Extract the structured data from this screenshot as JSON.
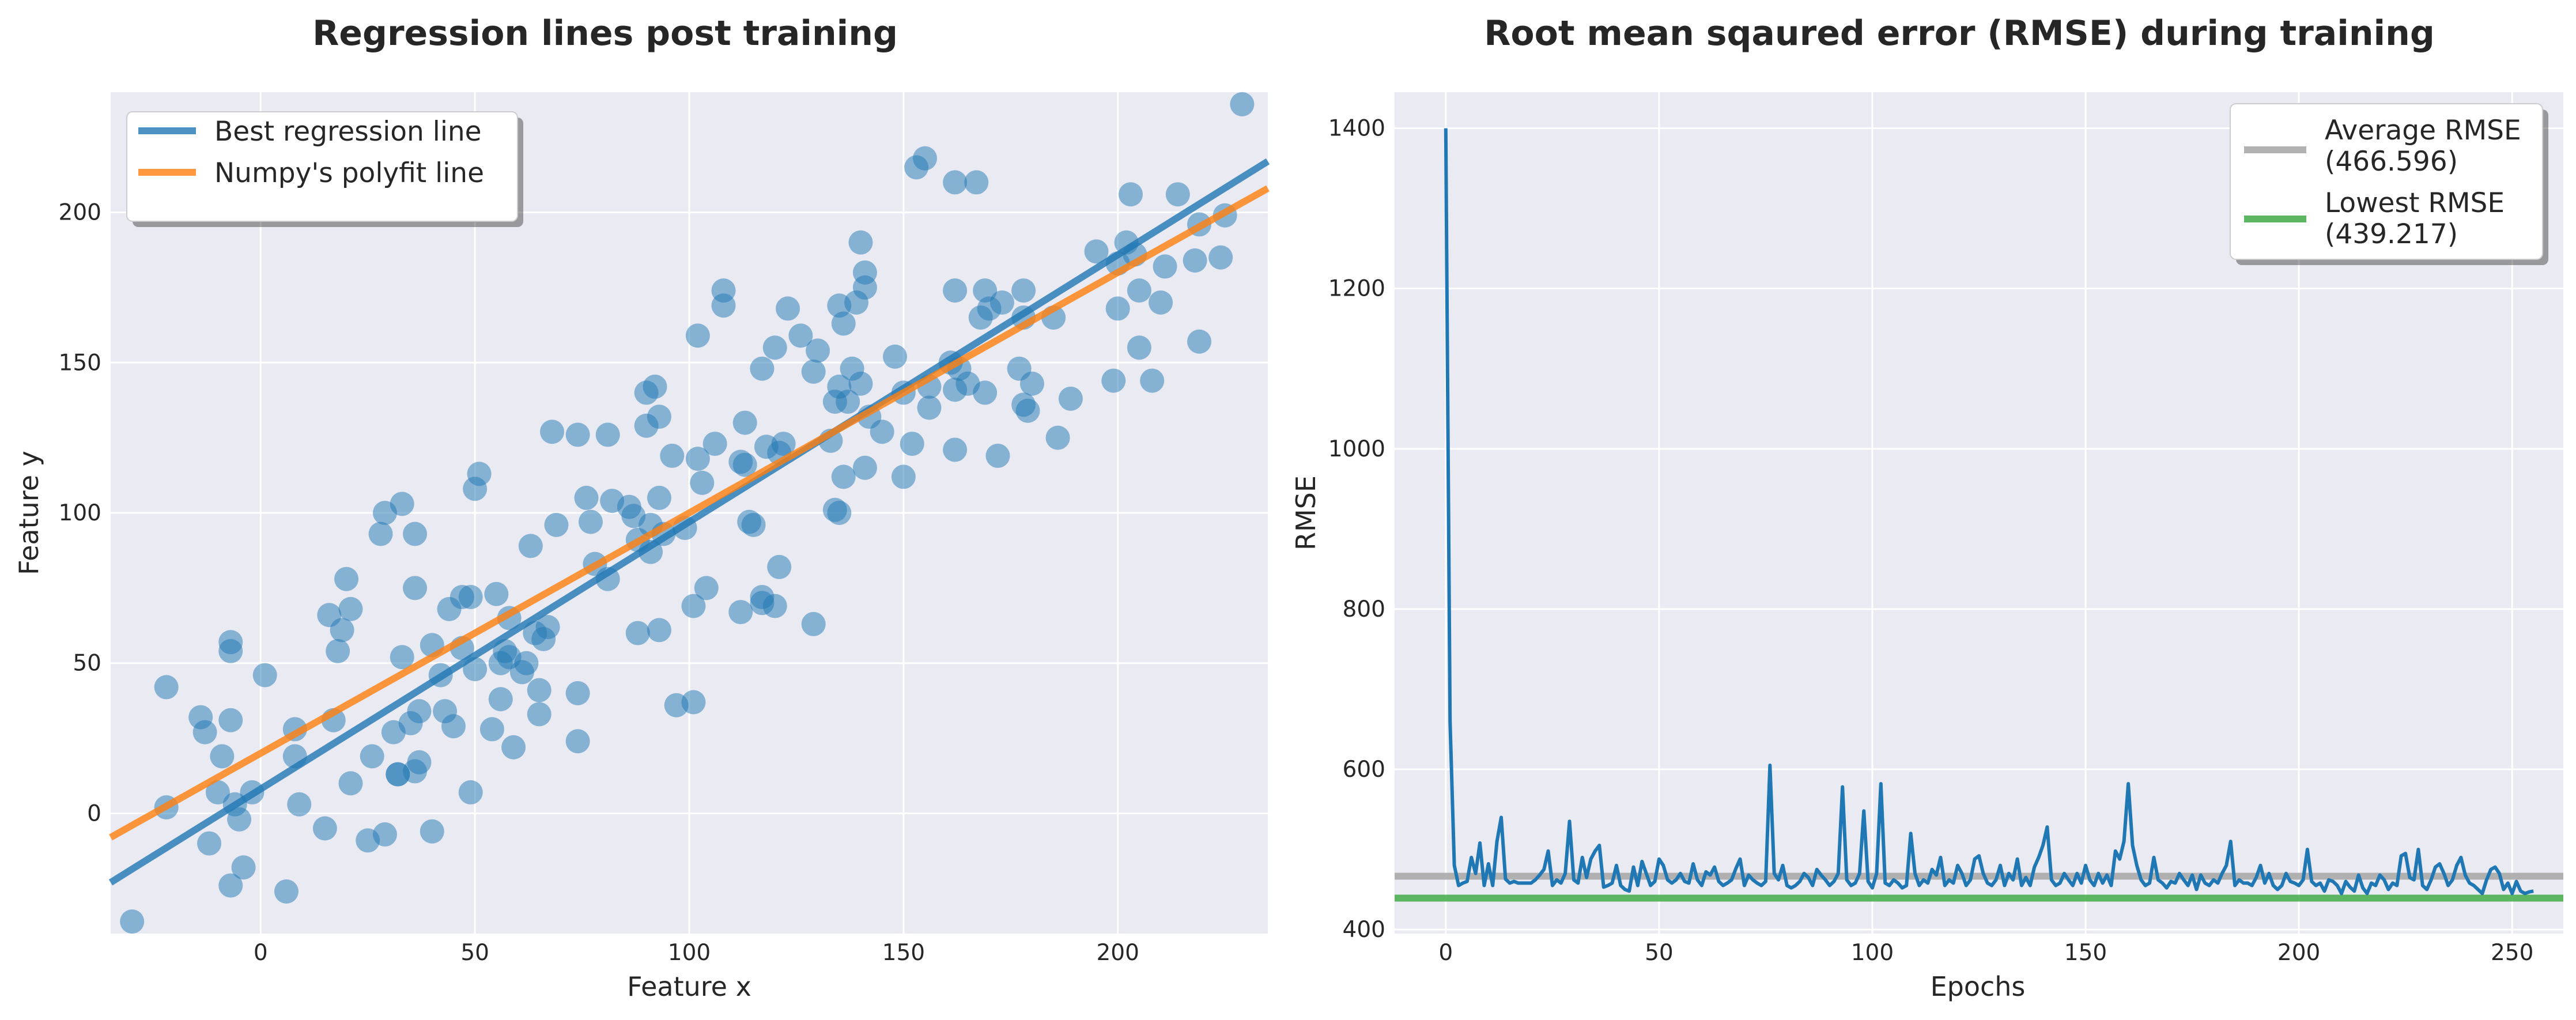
{
  "colors": {
    "plot_bg": "#EAEAF2",
    "grid": "#FFFFFF",
    "scatter": "#1F77B4",
    "best_line": "#1F77B4",
    "polyfit_line": "#FF7F0E",
    "rmse_line": "#1F77B4",
    "average_line": "#AAAAAA",
    "lowest_line": "#4CAF50"
  },
  "chart_data": [
    {
      "type": "scatter",
      "title": "Regression lines post training",
      "xlabel": "Feature x",
      "ylabel": "Feature y",
      "xlim": [
        -35,
        235
      ],
      "ylim": [
        -40,
        240
      ],
      "xticks": [
        0,
        50,
        100,
        150,
        200
      ],
      "yticks": [
        0,
        50,
        100,
        150,
        200
      ],
      "xtick_labels": [
        "0",
        "50",
        "100",
        "150",
        "200"
      ],
      "ytick_labels": [
        "0",
        "50",
        "100",
        "150",
        "200"
      ],
      "grid": true,
      "legend_position": "top-left",
      "series": [
        {
          "name": "Best regression line",
          "kind": "line",
          "x": [
            -35,
            235
          ],
          "y": [
            -23,
            217
          ]
        },
        {
          "name": "Numpy's polyfit line",
          "kind": "line",
          "x": [
            -35,
            235
          ],
          "y": [
            -8,
            208
          ]
        }
      ],
      "points": [
        [
          -30,
          -36
        ],
        [
          -22,
          42
        ],
        [
          -22,
          2
        ],
        [
          -14,
          32
        ],
        [
          -13,
          27
        ],
        [
          -12,
          -10
        ],
        [
          -10,
          7
        ],
        [
          -9,
          19
        ],
        [
          -7,
          57
        ],
        [
          -7,
          54
        ],
        [
          -7,
          31
        ],
        [
          -7,
          -24
        ],
        [
          -6,
          3
        ],
        [
          -5,
          -2
        ],
        [
          -4,
          -18
        ],
        [
          -2,
          7
        ],
        [
          1,
          46
        ],
        [
          6,
          -26
        ],
        [
          8,
          28
        ],
        [
          8,
          19
        ],
        [
          9,
          3
        ],
        [
          15,
          -5
        ],
        [
          16,
          66
        ],
        [
          17,
          31
        ],
        [
          18,
          54
        ],
        [
          19,
          61
        ],
        [
          20,
          78
        ],
        [
          21,
          68
        ],
        [
          21,
          10
        ],
        [
          25,
          -9
        ],
        [
          26,
          19
        ],
        [
          28,
          93
        ],
        [
          29,
          -7
        ],
        [
          29,
          100
        ],
        [
          31,
          27
        ],
        [
          32,
          13
        ],
        [
          32,
          13
        ],
        [
          33,
          103
        ],
        [
          33,
          52
        ],
        [
          35,
          30
        ],
        [
          36,
          93
        ],
        [
          36,
          75
        ],
        [
          37,
          34
        ],
        [
          37,
          17
        ],
        [
          36,
          14
        ],
        [
          40,
          -6
        ],
        [
          40,
          56
        ],
        [
          42,
          46
        ],
        [
          43,
          34
        ],
        [
          44,
          68
        ],
        [
          45,
          29
        ],
        [
          47,
          72
        ],
        [
          47,
          55
        ],
        [
          49,
          72
        ],
        [
          50,
          48
        ],
        [
          49,
          7
        ],
        [
          50,
          108
        ],
        [
          51,
          113
        ],
        [
          54,
          28
        ],
        [
          55,
          73
        ],
        [
          56,
          38
        ],
        [
          56,
          50
        ],
        [
          57,
          54
        ],
        [
          58,
          52
        ],
        [
          58,
          65
        ],
        [
          59,
          22
        ],
        [
          61,
          47
        ],
        [
          62,
          50
        ],
        [
          63,
          89
        ],
        [
          64,
          60
        ],
        [
          65,
          41
        ],
        [
          65,
          33
        ],
        [
          66,
          58
        ],
        [
          67,
          62
        ],
        [
          68,
          127
        ],
        [
          69,
          96
        ],
        [
          74,
          24
        ],
        [
          74,
          40
        ],
        [
          74,
          126
        ],
        [
          76,
          105
        ],
        [
          77,
          97
        ],
        [
          78,
          83
        ],
        [
          81,
          78
        ],
        [
          81,
          126
        ],
        [
          82,
          104
        ],
        [
          86,
          102
        ],
        [
          87,
          99
        ],
        [
          88,
          60
        ],
        [
          88,
          91
        ],
        [
          90,
          140
        ],
        [
          90,
          129
        ],
        [
          91,
          87
        ],
        [
          91,
          96
        ],
        [
          92,
          142
        ],
        [
          93,
          132
        ],
        [
          93,
          61
        ],
        [
          93,
          105
        ],
        [
          94,
          93
        ],
        [
          96,
          119
        ],
        [
          97,
          36
        ],
        [
          99,
          95
        ],
        [
          101,
          69
        ],
        [
          101,
          37
        ],
        [
          102,
          118
        ],
        [
          102,
          159
        ],
        [
          103,
          110
        ],
        [
          104,
          75
        ],
        [
          106,
          123
        ],
        [
          108,
          174
        ],
        [
          108,
          169
        ],
        [
          112,
          117
        ],
        [
          112,
          67
        ],
        [
          113,
          116
        ],
        [
          113,
          130
        ],
        [
          114,
          97
        ],
        [
          115,
          96
        ],
        [
          117,
          148
        ],
        [
          117,
          70
        ],
        [
          117,
          72
        ],
        [
          118,
          122
        ],
        [
          120,
          69
        ],
        [
          120,
          155
        ],
        [
          121,
          82
        ],
        [
          121,
          120
        ],
        [
          122,
          123
        ],
        [
          123,
          168
        ],
        [
          126,
          159
        ],
        [
          129,
          147
        ],
        [
          129,
          63
        ],
        [
          130,
          154
        ],
        [
          133,
          124
        ],
        [
          134,
          137
        ],
        [
          134,
          101
        ],
        [
          135,
          142
        ],
        [
          135,
          100
        ],
        [
          135,
          169
        ],
        [
          136,
          163
        ],
        [
          136,
          112
        ],
        [
          137,
          137
        ],
        [
          138,
          148
        ],
        [
          139,
          170
        ],
        [
          140,
          190
        ],
        [
          140,
          143
        ],
        [
          141,
          180
        ],
        [
          141,
          175
        ],
        [
          141,
          115
        ],
        [
          142,
          132
        ],
        [
          145,
          127
        ],
        [
          148,
          152
        ],
        [
          150,
          140
        ],
        [
          150,
          112
        ],
        [
          152,
          123
        ],
        [
          153,
          215
        ],
        [
          155,
          218
        ],
        [
          156,
          142
        ],
        [
          156,
          135
        ],
        [
          161,
          150
        ],
        [
          162,
          141
        ],
        [
          162,
          210
        ],
        [
          162,
          174
        ],
        [
          162,
          121
        ],
        [
          163,
          148
        ],
        [
          165,
          143
        ],
        [
          167,
          210
        ],
        [
          168,
          165
        ],
        [
          169,
          140
        ],
        [
          169,
          174
        ],
        [
          170,
          168
        ],
        [
          172,
          119
        ],
        [
          173,
          170
        ],
        [
          177,
          148
        ],
        [
          178,
          174
        ],
        [
          178,
          165
        ],
        [
          178,
          136
        ],
        [
          179,
          134
        ],
        [
          180,
          143
        ],
        [
          185,
          165
        ],
        [
          186,
          125
        ],
        [
          189,
          138
        ],
        [
          195,
          187
        ],
        [
          199,
          144
        ],
        [
          200,
          168
        ],
        [
          200,
          183
        ],
        [
          202,
          190
        ],
        [
          203,
          206
        ],
        [
          204,
          186
        ],
        [
          205,
          174
        ],
        [
          205,
          155
        ],
        [
          208,
          144
        ],
        [
          210,
          170
        ],
        [
          211,
          182
        ],
        [
          214,
          206
        ],
        [
          218,
          184
        ],
        [
          219,
          157
        ],
        [
          219,
          196
        ],
        [
          224,
          185
        ],
        [
          225,
          199
        ],
        [
          229,
          236
        ]
      ]
    },
    {
      "type": "line",
      "title": "Root mean sqaured error (RMSE) during training",
      "xlabel": "Epochs",
      "ylabel": "RMSE",
      "xlim": [
        -12,
        262
      ],
      "ylim": [
        395,
        1445
      ],
      "xticks": [
        0,
        50,
        100,
        150,
        200,
        250
      ],
      "yticks": [
        400,
        600,
        800,
        1000,
        1200,
        1400
      ],
      "xtick_labels": [
        "0",
        "50",
        "100",
        "150",
        "200",
        "250"
      ],
      "ytick_labels": [
        "400",
        "600",
        "800",
        "1000",
        "1200",
        "1400"
      ],
      "grid": true,
      "legend_position": "top-right",
      "series": [
        {
          "name": "RMSE",
          "kind": "rmse"
        },
        {
          "name": "Average RMSE\n(466.596)",
          "kind": "hline",
          "value": 466.596
        },
        {
          "name": "Lowest RMSE\n(439.217)",
          "kind": "hline",
          "value": 439.217
        }
      ],
      "legend_entries": [
        {
          "line1": "Average RMSE",
          "line2": "(466.596)"
        },
        {
          "line1": "Lowest RMSE",
          "line2": "(439.217)"
        }
      ],
      "rmse_values": [
        1400,
        660,
        480,
        455,
        458,
        460,
        490,
        470,
        508,
        455,
        482,
        455,
        510,
        540,
        463,
        458,
        460,
        458,
        458,
        458,
        458,
        462,
        468,
        475,
        498,
        455,
        462,
        458,
        470,
        535,
        462,
        458,
        490,
        465,
        488,
        498,
        505,
        453,
        455,
        458,
        480,
        455,
        450,
        448,
        478,
        455,
        485,
        470,
        455,
        460,
        488,
        480,
        462,
        458,
        462,
        470,
        460,
        458,
        482,
        462,
        455,
        472,
        468,
        478,
        460,
        455,
        458,
        462,
        476,
        488,
        455,
        468,
        462,
        458,
        455,
        460,
        605,
        470,
        462,
        480,
        455,
        452,
        455,
        460,
        470,
        465,
        455,
        475,
        468,
        462,
        455,
        460,
        470,
        578,
        462,
        455,
        458,
        470,
        548,
        460,
        452,
        470,
        582,
        458,
        455,
        462,
        458,
        452,
        455,
        520,
        470,
        455,
        462,
        458,
        475,
        468,
        490,
        455,
        462,
        458,
        480,
        470,
        455,
        462,
        488,
        492,
        470,
        458,
        455,
        462,
        480,
        455,
        470,
        462,
        488,
        455,
        465,
        455,
        478,
        490,
        505,
        528,
        462,
        455,
        458,
        470,
        462,
        455,
        470,
        458,
        480,
        462,
        455,
        470,
        458,
        468,
        455,
        498,
        488,
        510,
        582,
        505,
        480,
        462,
        455,
        458,
        490,
        462,
        458,
        452,
        460,
        458,
        470,
        462,
        455,
        468,
        450,
        468,
        458,
        455,
        462,
        458,
        470,
        480,
        510,
        455,
        462,
        458,
        458,
        455,
        465,
        480,
        458,
        470,
        455,
        450,
        455,
        470,
        460,
        458,
        455,
        462,
        500,
        460,
        455,
        458,
        448,
        462,
        460,
        455,
        445,
        460,
        453,
        448,
        468,
        452,
        445,
        458,
        455,
        468,
        462,
        450,
        458,
        455,
        492,
        495,
        465,
        462,
        500,
        455,
        450,
        462,
        478,
        482,
        470,
        455,
        462,
        480,
        490,
        468,
        458,
        455,
        450,
        445,
        462,
        475,
        478,
        470,
        450,
        458,
        445,
        460,
        448,
        445,
        447,
        448
      ]
    }
  ]
}
